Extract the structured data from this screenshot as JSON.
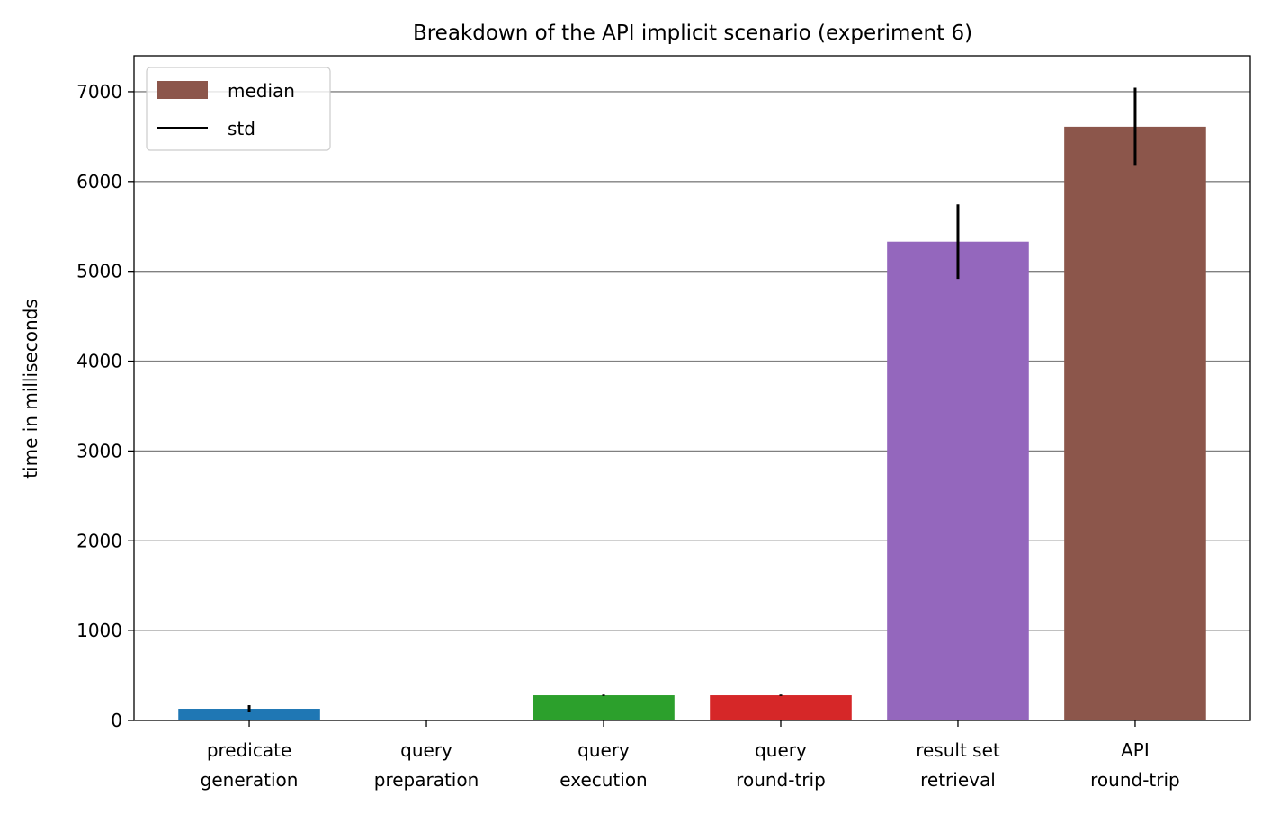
{
  "chart_data": {
    "type": "bar",
    "title": "Breakdown of the API implicit scenario (experiment 6)",
    "xlabel": "",
    "ylabel": "time in milliseconds",
    "ylim": [
      0,
      7400
    ],
    "yticks": [
      0,
      1000,
      2000,
      3000,
      4000,
      5000,
      6000,
      7000
    ],
    "grid": "horizontal",
    "legend_position": "top-left",
    "legend": [
      {
        "label": "median",
        "kind": "patch",
        "color": "#8c564b"
      },
      {
        "label": "std",
        "kind": "line",
        "color": "#000000"
      }
    ],
    "categories": [
      [
        "predicate",
        "generation"
      ],
      [
        "query",
        "preparation"
      ],
      [
        "query",
        "execution"
      ],
      [
        "query",
        "round-trip"
      ],
      [
        "result set",
        "retrieval"
      ],
      [
        "API",
        "round-trip"
      ]
    ],
    "series": [
      {
        "name": "median",
        "values": [
          130,
          1,
          280,
          280,
          5330,
          6610
        ],
        "std": [
          40,
          2,
          8,
          8,
          415,
          435
        ],
        "colors": [
          "#1f77b4",
          "#ff7f0e",
          "#2ca02c",
          "#d62728",
          "#9467bd",
          "#8c564b"
        ]
      }
    ]
  }
}
